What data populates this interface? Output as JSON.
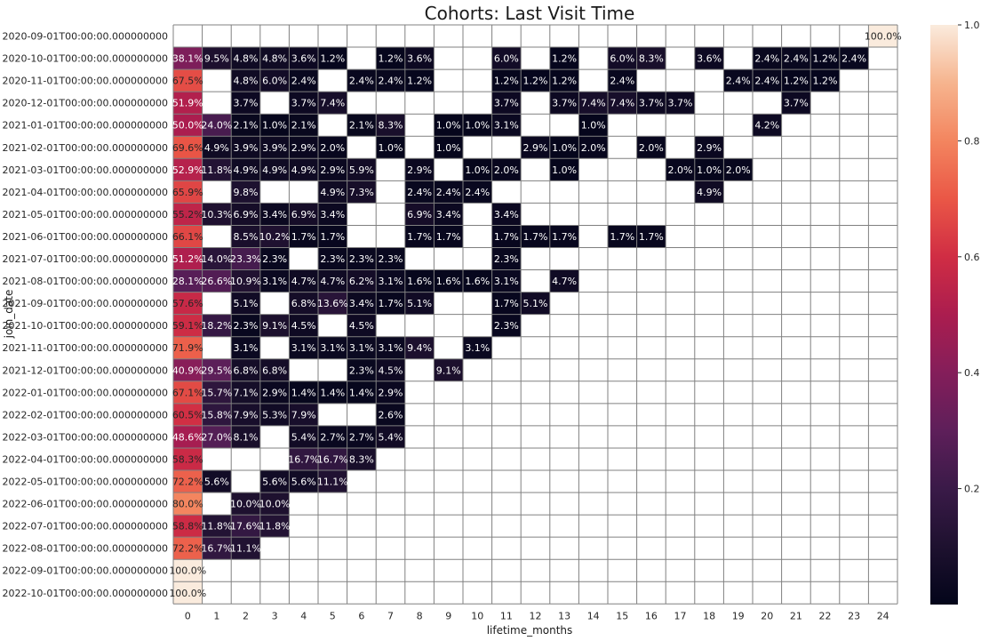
{
  "chart_data": {
    "type": "heatmap",
    "title": "Cohorts: Last Visit Time",
    "xlabel": "lifetime_months",
    "ylabel": "join_date",
    "x": [
      0,
      1,
      2,
      3,
      4,
      5,
      6,
      7,
      8,
      9,
      10,
      11,
      12,
      13,
      14,
      15,
      16,
      17,
      18,
      19,
      20,
      21,
      22,
      23,
      24
    ],
    "y": [
      "2020-09-01T00:00:00.000000000",
      "2020-10-01T00:00:00.000000000",
      "2020-11-01T00:00:00.000000000",
      "2020-12-01T00:00:00.000000000",
      "2021-01-01T00:00:00.000000000",
      "2021-02-01T00:00:00.000000000",
      "2021-03-01T00:00:00.000000000",
      "2021-04-01T00:00:00.000000000",
      "2021-05-01T00:00:00.000000000",
      "2021-06-01T00:00:00.000000000",
      "2021-07-01T00:00:00.000000000",
      "2021-08-01T00:00:00.000000000",
      "2021-09-01T00:00:00.000000000",
      "2021-10-01T00:00:00.000000000",
      "2021-11-01T00:00:00.000000000",
      "2021-12-01T00:00:00.000000000",
      "2022-01-01T00:00:00.000000000",
      "2022-02-01T00:00:00.000000000",
      "2022-03-01T00:00:00.000000000",
      "2022-04-01T00:00:00.000000000",
      "2022-05-01T00:00:00.000000000",
      "2022-06-01T00:00:00.000000000",
      "2022-07-01T00:00:00.000000000",
      "2022-08-01T00:00:00.000000000",
      "2022-09-01T00:00:00.000000000",
      "2022-10-01T00:00:00.000000000"
    ],
    "values": [
      [
        null,
        null,
        null,
        null,
        null,
        null,
        null,
        null,
        null,
        null,
        null,
        null,
        null,
        null,
        null,
        null,
        null,
        null,
        null,
        null,
        null,
        null,
        null,
        null,
        1.0
      ],
      [
        0.381,
        0.095,
        0.048,
        0.048,
        0.036,
        0.012,
        null,
        0.012,
        0.036,
        null,
        null,
        0.06,
        null,
        0.012,
        null,
        0.06,
        0.083,
        null,
        0.036,
        null,
        0.024,
        0.024,
        0.012,
        0.024,
        null
      ],
      [
        0.675,
        null,
        0.048,
        0.06,
        0.024,
        null,
        0.024,
        0.024,
        0.012,
        null,
        null,
        0.012,
        0.012,
        0.012,
        null,
        0.024,
        null,
        null,
        null,
        0.024,
        0.024,
        0.012,
        0.012,
        null,
        null
      ],
      [
        0.519,
        null,
        0.037,
        null,
        0.037,
        0.074,
        null,
        null,
        null,
        null,
        null,
        0.037,
        null,
        0.037,
        0.074,
        0.074,
        0.037,
        0.037,
        null,
        null,
        null,
        0.037,
        null,
        null,
        null
      ],
      [
        0.5,
        0.24,
        0.021,
        0.01,
        0.021,
        null,
        0.021,
        0.083,
        null,
        0.01,
        0.01,
        0.031,
        null,
        null,
        0.01,
        null,
        null,
        null,
        null,
        null,
        0.042,
        null,
        null,
        null,
        null
      ],
      [
        0.696,
        0.049,
        0.039,
        0.039,
        0.029,
        0.02,
        null,
        0.01,
        null,
        0.01,
        null,
        null,
        0.029,
        0.01,
        0.02,
        null,
        0.02,
        null,
        0.029,
        null,
        null,
        null,
        null,
        null,
        null
      ],
      [
        0.529,
        0.118,
        0.049,
        0.049,
        0.049,
        0.029,
        0.059,
        null,
        0.029,
        null,
        0.01,
        0.02,
        null,
        0.01,
        null,
        null,
        null,
        0.02,
        0.01,
        0.02,
        null,
        null,
        null,
        null,
        null
      ],
      [
        0.659,
        null,
        0.098,
        null,
        null,
        0.049,
        0.073,
        null,
        0.024,
        0.024,
        0.024,
        null,
        null,
        null,
        null,
        null,
        null,
        null,
        0.049,
        null,
        null,
        null,
        null,
        null,
        null
      ],
      [
        0.552,
        0.103,
        0.069,
        0.034,
        0.069,
        0.034,
        null,
        null,
        0.069,
        0.034,
        null,
        0.034,
        null,
        null,
        null,
        null,
        null,
        null,
        null,
        null,
        null,
        null,
        null,
        null,
        null
      ],
      [
        0.661,
        null,
        0.085,
        0.102,
        0.017,
        0.017,
        null,
        null,
        0.017,
        0.017,
        null,
        0.017,
        0.017,
        0.017,
        null,
        0.017,
        0.017,
        null,
        null,
        null,
        null,
        null,
        null,
        null,
        null
      ],
      [
        0.512,
        0.14,
        0.233,
        0.023,
        null,
        0.023,
        0.023,
        0.023,
        null,
        null,
        null,
        0.023,
        null,
        null,
        null,
        null,
        null,
        null,
        null,
        null,
        null,
        null,
        null,
        null,
        null
      ],
      [
        0.281,
        0.266,
        0.109,
        0.031,
        0.047,
        0.047,
        0.062,
        0.031,
        0.016,
        0.016,
        0.016,
        0.031,
        null,
        0.047,
        null,
        null,
        null,
        null,
        null,
        null,
        null,
        null,
        null,
        null,
        null
      ],
      [
        0.576,
        null,
        0.051,
        null,
        0.068,
        0.136,
        0.034,
        0.017,
        0.051,
        null,
        null,
        0.017,
        0.051,
        null,
        null,
        null,
        null,
        null,
        null,
        null,
        null,
        null,
        null,
        null,
        null
      ],
      [
        0.591,
        0.182,
        0.023,
        0.091,
        0.045,
        null,
        0.045,
        null,
        null,
        null,
        null,
        0.023,
        null,
        null,
        null,
        null,
        null,
        null,
        null,
        null,
        null,
        null,
        null,
        null,
        null
      ],
      [
        0.719,
        null,
        0.031,
        null,
        0.031,
        0.031,
        0.031,
        0.031,
        0.094,
        null,
        0.031,
        null,
        null,
        null,
        null,
        null,
        null,
        null,
        null,
        null,
        null,
        null,
        null,
        null,
        null
      ],
      [
        0.409,
        0.295,
        0.068,
        0.068,
        null,
        null,
        0.023,
        0.045,
        null,
        0.091,
        null,
        null,
        null,
        null,
        null,
        null,
        null,
        null,
        null,
        null,
        null,
        null,
        null,
        null,
        null
      ],
      [
        0.671,
        0.157,
        0.071,
        0.029,
        0.014,
        0.014,
        0.014,
        0.029,
        null,
        null,
        null,
        null,
        null,
        null,
        null,
        null,
        null,
        null,
        null,
        null,
        null,
        null,
        null,
        null,
        null
      ],
      [
        0.605,
        0.158,
        0.079,
        0.053,
        0.079,
        null,
        null,
        0.026,
        null,
        null,
        null,
        null,
        null,
        null,
        null,
        null,
        null,
        null,
        null,
        null,
        null,
        null,
        null,
        null,
        null
      ],
      [
        0.486,
        0.27,
        0.081,
        null,
        0.054,
        0.027,
        0.027,
        0.054,
        null,
        null,
        null,
        null,
        null,
        null,
        null,
        null,
        null,
        null,
        null,
        null,
        null,
        null,
        null,
        null,
        null
      ],
      [
        0.583,
        null,
        null,
        null,
        0.167,
        0.167,
        0.083,
        null,
        null,
        null,
        null,
        null,
        null,
        null,
        null,
        null,
        null,
        null,
        null,
        null,
        null,
        null,
        null,
        null,
        null
      ],
      [
        0.722,
        0.056,
        null,
        0.056,
        0.056,
        0.111,
        null,
        null,
        null,
        null,
        null,
        null,
        null,
        null,
        null,
        null,
        null,
        null,
        null,
        null,
        null,
        null,
        null,
        null,
        null
      ],
      [
        0.8,
        null,
        0.1,
        0.1,
        null,
        null,
        null,
        null,
        null,
        null,
        null,
        null,
        null,
        null,
        null,
        null,
        null,
        null,
        null,
        null,
        null,
        null,
        null,
        null,
        null
      ],
      [
        0.588,
        0.118,
        0.176,
        0.118,
        null,
        null,
        null,
        null,
        null,
        null,
        null,
        null,
        null,
        null,
        null,
        null,
        null,
        null,
        null,
        null,
        null,
        null,
        null,
        null,
        null
      ],
      [
        0.722,
        0.167,
        0.111,
        null,
        null,
        null,
        null,
        null,
        null,
        null,
        null,
        null,
        null,
        null,
        null,
        null,
        null,
        null,
        null,
        null,
        null,
        null,
        null,
        null,
        null
      ],
      [
        1.0,
        null,
        null,
        null,
        null,
        null,
        null,
        null,
        null,
        null,
        null,
        null,
        null,
        null,
        null,
        null,
        null,
        null,
        null,
        null,
        null,
        null,
        null,
        null,
        null
      ],
      [
        1.0,
        null,
        null,
        null,
        null,
        null,
        null,
        null,
        null,
        null,
        null,
        null,
        null,
        null,
        null,
        null,
        null,
        null,
        null,
        null,
        null,
        null,
        null,
        null,
        null
      ]
    ],
    "value_format": "percent_1dp",
    "colormap": "rocket",
    "colorbar": {
      "range": [
        0,
        1
      ],
      "ticks": [
        0.2,
        0.4,
        0.6,
        0.8,
        1.0
      ],
      "tick_labels": [
        "0.2",
        "0.4",
        "0.6",
        "0.8",
        "1.0"
      ]
    },
    "grid": true,
    "grid_color": "#808080"
  }
}
